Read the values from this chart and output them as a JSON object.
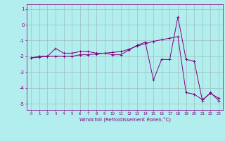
{
  "xlabel": "Windchill (Refroidissement éolien,°C)",
  "background_color": "#b2eeee",
  "grid_color": "#9dbfbf",
  "line_color": "#800080",
  "xlim": [
    -0.5,
    23.5
  ],
  "ylim": [
    -5.4,
    1.3
  ],
  "xticks": [
    0,
    1,
    2,
    3,
    4,
    5,
    6,
    7,
    8,
    9,
    10,
    11,
    12,
    13,
    14,
    15,
    16,
    17,
    18,
    19,
    20,
    21,
    22,
    23
  ],
  "yticks": [
    -5,
    -4,
    -3,
    -2,
    -1,
    0,
    1
  ],
  "line1_x": [
    0,
    1,
    2,
    3,
    4,
    5,
    6,
    7,
    8,
    9,
    10,
    11,
    12,
    13,
    14,
    15,
    16,
    17,
    18,
    19,
    20,
    21,
    22,
    23
  ],
  "line1_y": [
    -2.1,
    -2.0,
    -2.0,
    -1.5,
    -1.8,
    -1.8,
    -1.7,
    -1.7,
    -1.8,
    -1.8,
    -1.9,
    -1.9,
    -1.6,
    -1.3,
    -1.1,
    -3.5,
    -2.2,
    -2.2,
    0.5,
    -2.2,
    -2.3,
    -4.8,
    -4.3,
    -4.8
  ],
  "line2_x": [
    0,
    1,
    2,
    3,
    4,
    5,
    6,
    7,
    8,
    9,
    10,
    11,
    12,
    13,
    14,
    15,
    16,
    17,
    18,
    19,
    20,
    21,
    22,
    23
  ],
  "line2_y": [
    -2.1,
    -2.05,
    -2.0,
    -2.0,
    -2.0,
    -2.0,
    -1.9,
    -1.9,
    -1.85,
    -1.8,
    -1.75,
    -1.7,
    -1.55,
    -1.35,
    -1.2,
    -1.05,
    -0.95,
    -0.85,
    -0.75,
    -4.3,
    -4.4,
    -4.75,
    -4.35,
    -4.65
  ],
  "figsize": [
    3.2,
    2.0
  ],
  "dpi": 100
}
